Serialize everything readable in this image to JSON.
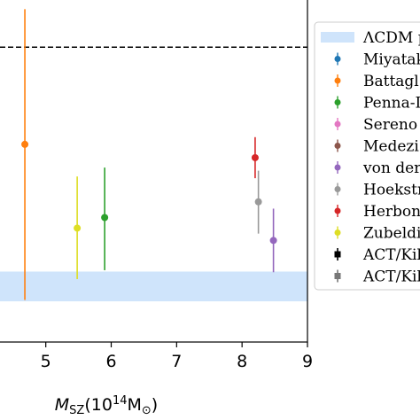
{
  "chart_data": {
    "type": "scatter",
    "xlabel_parts": [
      "M",
      "SZ",
      "(10",
      "14",
      "M",
      "⊙",
      ")"
    ],
    "xlim": [
      4.3,
      9.0
    ],
    "xticks": [
      "5",
      "6",
      "7",
      "8",
      "9"
    ],
    "xtick_values": [
      5,
      6,
      7,
      8,
      9
    ],
    "ylim": [
      0,
      1
    ],
    "ytick_values": [],
    "grid": false,
    "reference_line": {
      "style": "dashed",
      "color": "#000000",
      "y": 0.862
    },
    "band": {
      "name": "ΛCDM p",
      "color": "#cfe4fb",
      "y_low": 0.119,
      "y_high": 0.206
    },
    "series": [
      {
        "name": "Miyatak",
        "color": "#1f77b4",
        "x": [],
        "y": [],
        "yerr_low": [],
        "yerr_high": []
      },
      {
        "name": "Battagl",
        "color": "#ff7f0e",
        "x": [
          4.68
        ],
        "y": [
          0.578
        ],
        "yerr_low": [
          0.455
        ],
        "yerr_high": [
          0.395
        ]
      },
      {
        "name": "Penna-I",
        "color": "#2ca02c",
        "x": [
          5.9
        ],
        "y": [
          0.364
        ],
        "yerr_low": [
          0.154
        ],
        "yerr_high": [
          0.146
        ]
      },
      {
        "name": "Sereno",
        "color": "#e377c2",
        "x": [],
        "y": [],
        "yerr_low": [],
        "yerr_high": []
      },
      {
        "name": "Medezi",
        "color": "#8c564b",
        "x": [],
        "y": [],
        "yerr_low": [],
        "yerr_high": []
      },
      {
        "name": "von der",
        "color": "#9467bd",
        "x": [
          8.48
        ],
        "y": [
          0.297
        ],
        "yerr_low": [
          0.093
        ],
        "yerr_high": [
          0.093
        ]
      },
      {
        "name": "Hoekstr",
        "color": "#999999",
        "x": [
          8.25
        ],
        "y": [
          0.41
        ],
        "yerr_low": [
          0.093
        ],
        "yerr_high": [
          0.091
        ]
      },
      {
        "name": "Herbon",
        "color": "#d62728",
        "x": [
          8.2
        ],
        "y": [
          0.539
        ],
        "yerr_low": [
          0.06
        ],
        "yerr_high": [
          0.06
        ]
      },
      {
        "name": "Zubeldi",
        "color": "#dede24",
        "x": [
          5.48
        ],
        "y": [
          0.333
        ],
        "yerr_low": [
          0.149
        ],
        "yerr_high": [
          0.151
        ]
      },
      {
        "name": "ACT/Kil",
        "color": "#000000",
        "x": [],
        "y": [],
        "yerr_low": [],
        "yerr_high": []
      },
      {
        "name": "ACT/Kil",
        "color": "#777777",
        "x": [],
        "y": [],
        "yerr_low": [],
        "yerr_high": []
      }
    ]
  }
}
